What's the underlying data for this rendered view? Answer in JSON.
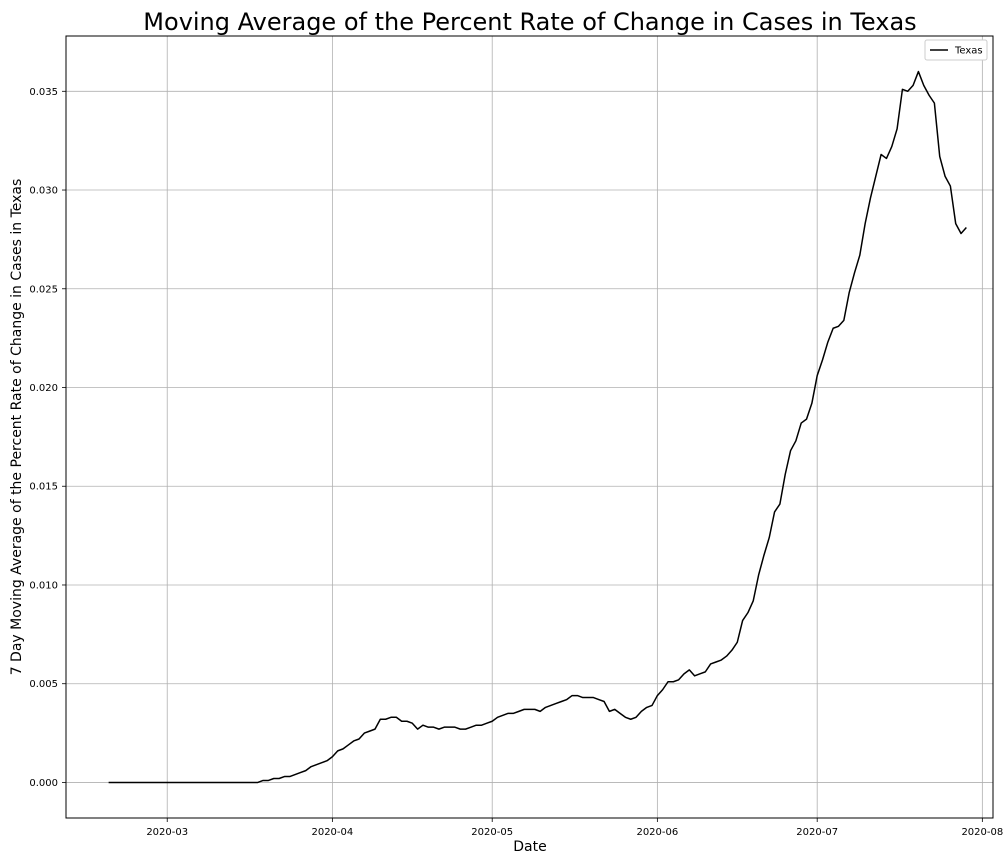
{
  "chart_data": {
    "type": "line",
    "title": "Moving Average of the Percent Rate of Change in Cases in Texas",
    "xlabel": "Date",
    "ylabel": "7 Day Moving Average of the Percent Rate of Change in Cases in Texas",
    "x_range": [
      "2020-02-11",
      "2020-08-03"
    ],
    "ylim": [
      -0.0018,
      0.0378
    ],
    "x_ticks": [
      "2020-03-01",
      "2020-04-01",
      "2020-05-01",
      "2020-06-01",
      "2020-07-01",
      "2020-08-01"
    ],
    "x_tick_labels": [
      "2020-03",
      "2020-04",
      "2020-05",
      "2020-06",
      "2020-07",
      "2020-08"
    ],
    "y_ticks": [
      0.0,
      0.005,
      0.01,
      0.015,
      0.02,
      0.025,
      0.03,
      0.035
    ],
    "y_tick_labels": [
      "0.000",
      "0.005",
      "0.010",
      "0.015",
      "0.020",
      "0.025",
      "0.030",
      "0.035"
    ],
    "grid": true,
    "legend_position": "top-right",
    "colors": {
      "series": "#000000",
      "grid": "#b0b0b0",
      "axes": "#000000",
      "background": "#ffffff"
    },
    "series": [
      {
        "name": "Texas",
        "points": [
          [
            "2020-02-19",
            0.0
          ],
          [
            "2020-03-01",
            0.0
          ],
          [
            "2020-03-10",
            0.0
          ],
          [
            "2020-03-18",
            0.0
          ],
          [
            "2020-03-19",
            0.0001
          ],
          [
            "2020-03-20",
            0.0001
          ],
          [
            "2020-03-21",
            0.0002
          ],
          [
            "2020-03-22",
            0.0002
          ],
          [
            "2020-03-23",
            0.0003
          ],
          [
            "2020-03-24",
            0.0003
          ],
          [
            "2020-03-25",
            0.0004
          ],
          [
            "2020-03-26",
            0.0005
          ],
          [
            "2020-03-27",
            0.0006
          ],
          [
            "2020-03-28",
            0.0008
          ],
          [
            "2020-03-29",
            0.0009
          ],
          [
            "2020-03-30",
            0.001
          ],
          [
            "2020-03-31",
            0.0011
          ],
          [
            "2020-04-01",
            0.0013
          ],
          [
            "2020-04-02",
            0.0016
          ],
          [
            "2020-04-03",
            0.0017
          ],
          [
            "2020-04-04",
            0.0019
          ],
          [
            "2020-04-05",
            0.0021
          ],
          [
            "2020-04-06",
            0.0022
          ],
          [
            "2020-04-07",
            0.0025
          ],
          [
            "2020-04-08",
            0.0026
          ],
          [
            "2020-04-09",
            0.0027
          ],
          [
            "2020-04-10",
            0.0032
          ],
          [
            "2020-04-11",
            0.0032
          ],
          [
            "2020-04-12",
            0.0033
          ],
          [
            "2020-04-13",
            0.0033
          ],
          [
            "2020-04-14",
            0.0031
          ],
          [
            "2020-04-15",
            0.0031
          ],
          [
            "2020-04-16",
            0.003
          ],
          [
            "2020-04-17",
            0.0027
          ],
          [
            "2020-04-18",
            0.0029
          ],
          [
            "2020-04-19",
            0.0028
          ],
          [
            "2020-04-20",
            0.0028
          ],
          [
            "2020-04-21",
            0.0027
          ],
          [
            "2020-04-22",
            0.0028
          ],
          [
            "2020-04-23",
            0.0028
          ],
          [
            "2020-04-24",
            0.0028
          ],
          [
            "2020-04-25",
            0.0027
          ],
          [
            "2020-04-26",
            0.0027
          ],
          [
            "2020-04-27",
            0.0028
          ],
          [
            "2020-04-28",
            0.0029
          ],
          [
            "2020-04-29",
            0.0029
          ],
          [
            "2020-04-30",
            0.003
          ],
          [
            "2020-05-01",
            0.0031
          ],
          [
            "2020-05-02",
            0.0033
          ],
          [
            "2020-05-03",
            0.0034
          ],
          [
            "2020-05-04",
            0.0035
          ],
          [
            "2020-05-05",
            0.0035
          ],
          [
            "2020-05-06",
            0.0036
          ],
          [
            "2020-05-07",
            0.0037
          ],
          [
            "2020-05-08",
            0.0037
          ],
          [
            "2020-05-09",
            0.0037
          ],
          [
            "2020-05-10",
            0.0036
          ],
          [
            "2020-05-11",
            0.0038
          ],
          [
            "2020-05-12",
            0.0039
          ],
          [
            "2020-05-13",
            0.004
          ],
          [
            "2020-05-14",
            0.0041
          ],
          [
            "2020-05-15",
            0.0042
          ],
          [
            "2020-05-16",
            0.0044
          ],
          [
            "2020-05-17",
            0.0044
          ],
          [
            "2020-05-18",
            0.0043
          ],
          [
            "2020-05-19",
            0.0043
          ],
          [
            "2020-05-20",
            0.0043
          ],
          [
            "2020-05-21",
            0.0042
          ],
          [
            "2020-05-22",
            0.0041
          ],
          [
            "2020-05-23",
            0.0036
          ],
          [
            "2020-05-24",
            0.0037
          ],
          [
            "2020-05-25",
            0.0035
          ],
          [
            "2020-05-26",
            0.0033
          ],
          [
            "2020-05-27",
            0.0032
          ],
          [
            "2020-05-28",
            0.0033
          ],
          [
            "2020-05-29",
            0.0036
          ],
          [
            "2020-05-30",
            0.0038
          ],
          [
            "2020-05-31",
            0.0039
          ],
          [
            "2020-06-01",
            0.0044
          ],
          [
            "2020-06-02",
            0.0047
          ],
          [
            "2020-06-03",
            0.0051
          ],
          [
            "2020-06-04",
            0.0051
          ],
          [
            "2020-06-05",
            0.0052
          ],
          [
            "2020-06-06",
            0.0055
          ],
          [
            "2020-06-07",
            0.0057
          ],
          [
            "2020-06-08",
            0.0054
          ],
          [
            "2020-06-09",
            0.0055
          ],
          [
            "2020-06-10",
            0.0056
          ],
          [
            "2020-06-11",
            0.006
          ],
          [
            "2020-06-12",
            0.0061
          ],
          [
            "2020-06-13",
            0.0062
          ],
          [
            "2020-06-14",
            0.0064
          ],
          [
            "2020-06-15",
            0.0067
          ],
          [
            "2020-06-16",
            0.0071
          ],
          [
            "2020-06-17",
            0.0082
          ],
          [
            "2020-06-18",
            0.0086
          ],
          [
            "2020-06-19",
            0.0092
          ],
          [
            "2020-06-20",
            0.0105
          ],
          [
            "2020-06-21",
            0.0115
          ],
          [
            "2020-06-22",
            0.0124
          ],
          [
            "2020-06-23",
            0.0137
          ],
          [
            "2020-06-24",
            0.0141
          ],
          [
            "2020-06-25",
            0.0156
          ],
          [
            "2020-06-26",
            0.0168
          ],
          [
            "2020-06-27",
            0.0173
          ],
          [
            "2020-06-28",
            0.0182
          ],
          [
            "2020-06-29",
            0.0184
          ],
          [
            "2020-06-30",
            0.0192
          ],
          [
            "2020-07-01",
            0.0206
          ],
          [
            "2020-07-02",
            0.0214
          ],
          [
            "2020-07-03",
            0.0223
          ],
          [
            "2020-07-04",
            0.023
          ],
          [
            "2020-07-05",
            0.0231
          ],
          [
            "2020-07-06",
            0.0234
          ],
          [
            "2020-07-07",
            0.0248
          ],
          [
            "2020-07-08",
            0.0258
          ],
          [
            "2020-07-09",
            0.0267
          ],
          [
            "2020-07-10",
            0.0283
          ],
          [
            "2020-07-11",
            0.0296
          ],
          [
            "2020-07-12",
            0.0307
          ],
          [
            "2020-07-13",
            0.0318
          ],
          [
            "2020-07-14",
            0.0316
          ],
          [
            "2020-07-15",
            0.0322
          ],
          [
            "2020-07-16",
            0.0331
          ],
          [
            "2020-07-17",
            0.0351
          ],
          [
            "2020-07-18",
            0.035
          ],
          [
            "2020-07-19",
            0.0353
          ],
          [
            "2020-07-20",
            0.036
          ],
          [
            "2020-07-21",
            0.0353
          ],
          [
            "2020-07-22",
            0.0348
          ],
          [
            "2020-07-23",
            0.0344
          ],
          [
            "2020-07-24",
            0.0317
          ],
          [
            "2020-07-25",
            0.0307
          ],
          [
            "2020-07-26",
            0.0302
          ],
          [
            "2020-07-27",
            0.0283
          ],
          [
            "2020-07-28",
            0.0278
          ],
          [
            "2020-07-29",
            0.0281
          ]
        ]
      }
    ]
  }
}
